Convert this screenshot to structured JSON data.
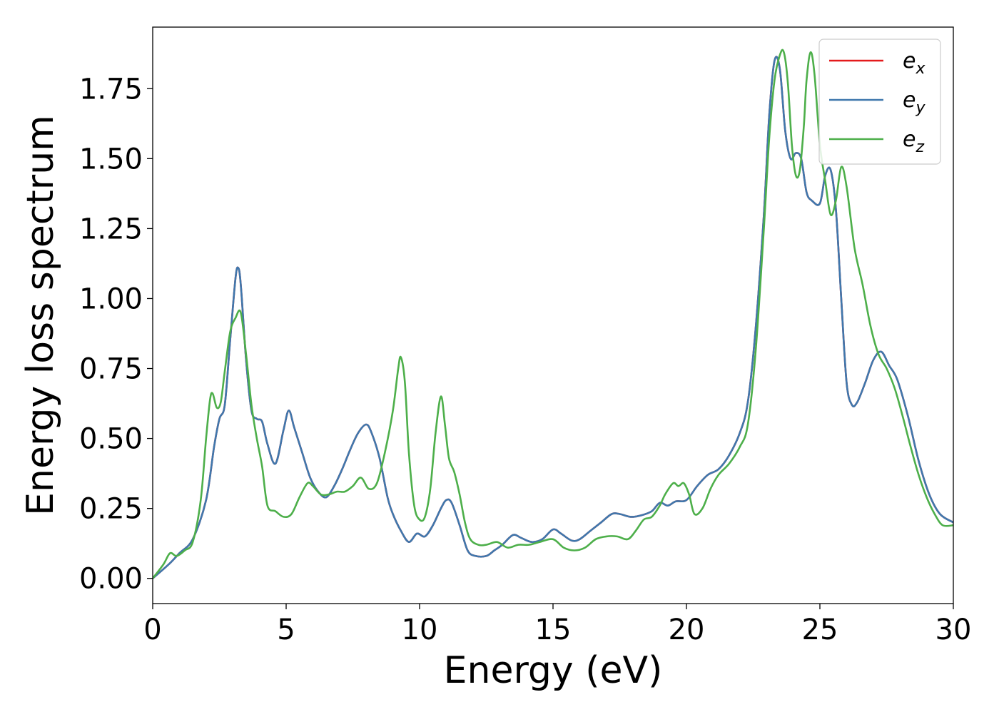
{
  "chart_data": {
    "type": "line",
    "xlabel": "Energy (eV)",
    "ylabel": "Energy loss spectrum",
    "xlim": [
      0,
      30
    ],
    "ylim": [
      -0.09,
      1.97
    ],
    "x_ticks": [
      "0",
      "5",
      "10",
      "15",
      "20",
      "25",
      "30"
    ],
    "y_ticks": [
      "0.00",
      "0.25",
      "0.50",
      "0.75",
      "1.00",
      "1.25",
      "1.50",
      "1.75"
    ],
    "grid": false,
    "legend_position": "top-right",
    "series": [
      {
        "name": "e_x",
        "legend_main": "e",
        "legend_sub": "x",
        "color": "#e41a1c",
        "x": [
          0,
          0.6,
          1.0,
          1.5,
          2.0,
          2.3,
          2.5,
          2.7,
          2.9,
          3.1,
          3.2,
          3.3,
          3.5,
          3.7,
          3.9,
          4.1,
          4.3,
          4.6,
          4.9,
          5.1,
          5.3,
          5.6,
          5.9,
          6.2,
          6.5,
          6.8,
          7.1,
          7.4,
          7.7,
          8.0,
          8.2,
          8.5,
          8.8,
          9.0,
          9.3,
          9.6,
          9.9,
          10.2,
          10.5,
          10.8,
          11.0,
          11.2,
          11.5,
          11.8,
          12.1,
          12.5,
          12.8,
          13.1,
          13.5,
          13.8,
          14.2,
          14.6,
          15.0,
          15.3,
          15.7,
          16.0,
          16.4,
          16.8,
          17.2,
          17.5,
          17.9,
          18.3,
          18.7,
          19.0,
          19.3,
          19.6,
          20.0,
          20.4,
          20.8,
          21.2,
          21.6,
          22.0,
          22.3,
          22.6,
          22.9,
          23.1,
          23.3,
          23.5,
          23.7,
          23.9,
          24.1,
          24.3,
          24.5,
          24.7,
          25.0,
          25.2,
          25.4,
          25.6,
          25.8,
          26.0,
          26.2,
          26.4,
          26.7,
          27.0,
          27.3,
          27.6,
          27.9,
          28.3,
          28.7,
          29.1,
          29.5,
          30.0
        ],
        "y": [
          0,
          0.05,
          0.09,
          0.14,
          0.28,
          0.47,
          0.57,
          0.62,
          0.85,
          1.07,
          1.11,
          1.05,
          0.78,
          0.6,
          0.57,
          0.56,
          0.48,
          0.41,
          0.53,
          0.6,
          0.54,
          0.45,
          0.36,
          0.31,
          0.29,
          0.33,
          0.39,
          0.46,
          0.52,
          0.55,
          0.52,
          0.43,
          0.29,
          0.23,
          0.17,
          0.13,
          0.16,
          0.15,
          0.19,
          0.25,
          0.28,
          0.27,
          0.19,
          0.1,
          0.08,
          0.08,
          0.1,
          0.12,
          0.155,
          0.145,
          0.13,
          0.14,
          0.175,
          0.16,
          0.135,
          0.14,
          0.17,
          0.2,
          0.23,
          0.23,
          0.22,
          0.225,
          0.24,
          0.27,
          0.26,
          0.275,
          0.28,
          0.33,
          0.37,
          0.39,
          0.44,
          0.52,
          0.63,
          0.9,
          1.3,
          1.65,
          1.85,
          1.82,
          1.6,
          1.5,
          1.52,
          1.5,
          1.38,
          1.35,
          1.34,
          1.44,
          1.46,
          1.32,
          1.0,
          0.7,
          0.62,
          0.63,
          0.7,
          0.78,
          0.81,
          0.76,
          0.71,
          0.58,
          0.42,
          0.3,
          0.23,
          0.2
        ]
      },
      {
        "name": "e_y",
        "legend_main": "e",
        "legend_sub": "y",
        "color": "#3f78ad",
        "x": [
          0,
          0.6,
          1.0,
          1.5,
          2.0,
          2.3,
          2.5,
          2.7,
          2.9,
          3.1,
          3.2,
          3.3,
          3.5,
          3.7,
          3.9,
          4.1,
          4.3,
          4.6,
          4.9,
          5.1,
          5.3,
          5.6,
          5.9,
          6.2,
          6.5,
          6.8,
          7.1,
          7.4,
          7.7,
          8.0,
          8.2,
          8.5,
          8.8,
          9.0,
          9.3,
          9.6,
          9.9,
          10.2,
          10.5,
          10.8,
          11.0,
          11.2,
          11.5,
          11.8,
          12.1,
          12.5,
          12.8,
          13.1,
          13.5,
          13.8,
          14.2,
          14.6,
          15.0,
          15.3,
          15.7,
          16.0,
          16.4,
          16.8,
          17.2,
          17.5,
          17.9,
          18.3,
          18.7,
          19.0,
          19.3,
          19.6,
          20.0,
          20.4,
          20.8,
          21.2,
          21.6,
          22.0,
          22.3,
          22.6,
          22.9,
          23.1,
          23.3,
          23.5,
          23.7,
          23.9,
          24.1,
          24.3,
          24.5,
          24.7,
          25.0,
          25.2,
          25.4,
          25.6,
          25.8,
          26.0,
          26.2,
          26.4,
          26.7,
          27.0,
          27.3,
          27.6,
          27.9,
          28.3,
          28.7,
          29.1,
          29.5,
          30.0
        ],
        "y": [
          0,
          0.05,
          0.09,
          0.14,
          0.28,
          0.47,
          0.57,
          0.62,
          0.85,
          1.07,
          1.11,
          1.05,
          0.78,
          0.6,
          0.57,
          0.56,
          0.48,
          0.41,
          0.53,
          0.6,
          0.54,
          0.45,
          0.36,
          0.31,
          0.29,
          0.33,
          0.39,
          0.46,
          0.52,
          0.55,
          0.52,
          0.43,
          0.29,
          0.23,
          0.17,
          0.13,
          0.16,
          0.15,
          0.19,
          0.25,
          0.28,
          0.27,
          0.19,
          0.1,
          0.08,
          0.08,
          0.1,
          0.12,
          0.155,
          0.145,
          0.13,
          0.14,
          0.175,
          0.16,
          0.135,
          0.14,
          0.17,
          0.2,
          0.23,
          0.23,
          0.22,
          0.225,
          0.24,
          0.27,
          0.26,
          0.275,
          0.28,
          0.33,
          0.37,
          0.39,
          0.44,
          0.52,
          0.63,
          0.9,
          1.3,
          1.65,
          1.85,
          1.82,
          1.6,
          1.5,
          1.52,
          1.5,
          1.38,
          1.35,
          1.34,
          1.44,
          1.46,
          1.32,
          1.0,
          0.7,
          0.62,
          0.63,
          0.7,
          0.78,
          0.81,
          0.76,
          0.71,
          0.58,
          0.42,
          0.3,
          0.23,
          0.2
        ]
      },
      {
        "name": "e_z",
        "legend_main": "e",
        "legend_sub": "z",
        "color": "#4daf4a",
        "x": [
          0,
          0.4,
          0.65,
          0.9,
          1.2,
          1.5,
          1.8,
          2.0,
          2.15,
          2.25,
          2.4,
          2.55,
          2.7,
          2.9,
          3.1,
          3.3,
          3.5,
          3.7,
          3.9,
          4.1,
          4.3,
          4.6,
          4.9,
          5.2,
          5.5,
          5.8,
          6.0,
          6.3,
          6.6,
          6.9,
          7.2,
          7.5,
          7.8,
          8.1,
          8.4,
          8.7,
          9.0,
          9.2,
          9.3,
          9.45,
          9.6,
          9.8,
          10.0,
          10.2,
          10.4,
          10.6,
          10.8,
          10.95,
          11.1,
          11.3,
          11.5,
          11.7,
          11.9,
          12.2,
          12.5,
          12.9,
          13.3,
          13.7,
          14.1,
          14.5,
          15.0,
          15.4,
          15.8,
          16.2,
          16.6,
          17.0,
          17.4,
          17.8,
          18.1,
          18.4,
          18.7,
          19.0,
          19.2,
          19.5,
          19.7,
          19.9,
          20.1,
          20.3,
          20.6,
          20.9,
          21.2,
          21.6,
          22.0,
          22.3,
          22.6,
          22.9,
          23.1,
          23.3,
          23.5,
          23.65,
          23.8,
          23.95,
          24.1,
          24.25,
          24.4,
          24.5,
          24.65,
          24.8,
          25.0,
          25.2,
          25.4,
          25.6,
          25.8,
          26.0,
          26.3,
          26.6,
          26.9,
          27.2,
          27.5,
          27.8,
          28.1,
          28.4,
          28.7,
          29.0,
          29.3,
          29.6,
          30.0
        ],
        "y": [
          0,
          0.05,
          0.09,
          0.08,
          0.1,
          0.13,
          0.28,
          0.5,
          0.64,
          0.66,
          0.61,
          0.63,
          0.74,
          0.88,
          0.93,
          0.95,
          0.8,
          0.62,
          0.5,
          0.4,
          0.26,
          0.24,
          0.22,
          0.23,
          0.29,
          0.34,
          0.33,
          0.3,
          0.3,
          0.31,
          0.31,
          0.33,
          0.36,
          0.32,
          0.34,
          0.45,
          0.6,
          0.75,
          0.79,
          0.7,
          0.45,
          0.26,
          0.21,
          0.22,
          0.32,
          0.52,
          0.65,
          0.55,
          0.43,
          0.38,
          0.3,
          0.2,
          0.14,
          0.12,
          0.12,
          0.13,
          0.11,
          0.12,
          0.12,
          0.13,
          0.14,
          0.11,
          0.1,
          0.11,
          0.14,
          0.15,
          0.15,
          0.14,
          0.17,
          0.21,
          0.22,
          0.26,
          0.3,
          0.34,
          0.33,
          0.34,
          0.3,
          0.23,
          0.25,
          0.32,
          0.37,
          0.41,
          0.47,
          0.55,
          0.82,
          1.25,
          1.57,
          1.78,
          1.87,
          1.88,
          1.77,
          1.55,
          1.44,
          1.46,
          1.62,
          1.78,
          1.88,
          1.8,
          1.55,
          1.42,
          1.3,
          1.35,
          1.47,
          1.4,
          1.18,
          1.05,
          0.9,
          0.8,
          0.75,
          0.68,
          0.58,
          0.47,
          0.37,
          0.29,
          0.23,
          0.19,
          0.19
        ]
      }
    ]
  }
}
